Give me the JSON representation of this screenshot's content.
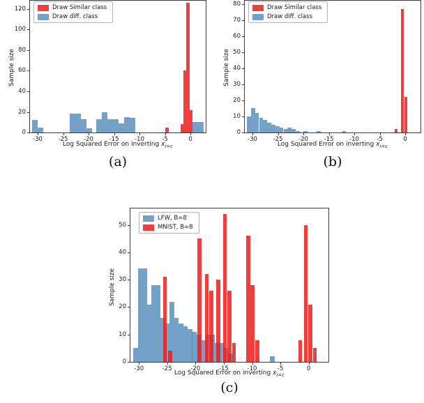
{
  "figure": {
    "sublabels": {
      "a": "(a)",
      "b": "(b)",
      "c": "(c)"
    }
  },
  "chart_data": [
    {
      "type": "bar",
      "variant": "histogram",
      "title": "",
      "ylabel": "Sample size",
      "xlabel_prefix": "Log Squared Error on inverting ",
      "xlabel_var": "x",
      "xlabel_sub": "i=c",
      "xlim": [
        -31.5,
        3
      ],
      "ylim": [
        0,
        128
      ],
      "xticks": [
        -30,
        -25,
        -20,
        -15,
        -10,
        -5,
        0
      ],
      "yticks": [
        0,
        20,
        40,
        60,
        80,
        100,
        120
      ],
      "grid": false,
      "legend_position": "upper-left",
      "legend": [
        {
          "label": "Draw Similar class",
          "color": "rgba(236,28,28,0.85)"
        },
        {
          "label": "Draw diff. class",
          "color": "rgba(70,130,180,0.75)"
        }
      ],
      "series": [
        {
          "key": "diff-class",
          "name": "Draw diff. class",
          "color": "rgba(70,130,180,0.75)",
          "binwidth": 1.1,
          "bins": [
            [
              -30.6,
              12
            ],
            [
              -29.5,
              5
            ],
            [
              -23.2,
              18
            ],
            [
              -22.1,
              18
            ],
            [
              -21,
              13
            ],
            [
              -19.9,
              4
            ],
            [
              -18,
              13
            ],
            [
              -16.9,
              20
            ],
            [
              -15.8,
              13
            ],
            [
              -14.7,
              13
            ],
            [
              -13.6,
              9
            ],
            [
              -12.5,
              15
            ],
            [
              -11.4,
              14
            ],
            [
              0.9,
              10
            ],
            [
              2,
              10
            ]
          ]
        },
        {
          "key": "similar-class",
          "name": "Draw Similar class",
          "color": "rgba(236,28,28,0.85)",
          "binwidth": 0.6,
          "bins": [
            [
              -4.6,
              5
            ],
            [
              -1.7,
              8
            ],
            [
              -1.1,
              60
            ],
            [
              -0.5,
              126
            ],
            [
              0.1,
              22
            ]
          ]
        }
      ]
    },
    {
      "type": "bar",
      "variant": "histogram",
      "title": "",
      "ylabel": "Sample size",
      "xlabel_prefix": "Log Squared Error on inverting ",
      "xlabel_var": "x",
      "xlabel_sub": "i=c",
      "xlim": [
        -31.5,
        3
      ],
      "ylim": [
        0,
        82
      ],
      "xticks": [
        -30,
        -25,
        -20,
        -15,
        -10,
        -5,
        0
      ],
      "yticks": [
        0,
        10,
        20,
        30,
        40,
        50,
        60,
        70,
        80
      ],
      "grid": false,
      "legend_position": "upper-left",
      "legend": [
        {
          "label": "Draw Similar class",
          "color": "rgba(236,28,28,0.85)"
        },
        {
          "label": "Draw diff. class",
          "color": "rgba(70,130,180,0.75)"
        }
      ],
      "series": [
        {
          "key": "diff-class",
          "name": "Draw diff. class",
          "color": "rgba(70,130,180,0.75)",
          "binwidth": 0.8,
          "bins": [
            [
              -30.7,
              10
            ],
            [
              -29.9,
              15
            ],
            [
              -29.1,
              12
            ],
            [
              -28.3,
              9
            ],
            [
              -27.5,
              8
            ],
            [
              -26.7,
              6
            ],
            [
              -25.9,
              5
            ],
            [
              -25.1,
              4
            ],
            [
              -24.3,
              3
            ],
            [
              -23.5,
              2
            ],
            [
              -22.7,
              3
            ],
            [
              -21.9,
              2
            ],
            [
              -21.1,
              1
            ],
            [
              -19.6,
              1
            ],
            [
              -17,
              1
            ],
            [
              -12,
              1
            ]
          ]
        },
        {
          "key": "similar-class",
          "name": "Draw Similar class",
          "color": "rgba(236,28,28,0.85)",
          "binwidth": 0.6,
          "bins": [
            [
              -1.8,
              2
            ],
            [
              -0.6,
              77
            ],
            [
              0.1,
              22
            ]
          ]
        }
      ]
    },
    {
      "type": "bar",
      "variant": "histogram",
      "title": "",
      "ylabel": "Sample size",
      "xlabel_prefix": "Log Squared Error on inverting ",
      "xlabel_var": "x",
      "xlabel_sub": "i=c",
      "xlim": [
        -31.5,
        3.5
      ],
      "ylim": [
        0,
        56
      ],
      "xticks": [
        -30,
        -25,
        -20,
        -15,
        -10,
        -5,
        0
      ],
      "yticks": [
        0,
        10,
        20,
        30,
        40,
        50
      ],
      "grid": false,
      "legend_position": "upper-left",
      "legend": [
        {
          "label": "LFW, B=8",
          "color": "rgba(70,130,180,0.75)"
        },
        {
          "label": "MNIST, B=8",
          "color": "rgba(236,28,28,0.85)"
        }
      ],
      "series": [
        {
          "key": "lfw",
          "name": "LFW, B=8",
          "color": "rgba(70,130,180,0.75)",
          "binwidth": 0.8,
          "bins": [
            [
              -30.6,
              5
            ],
            [
              -29.8,
              34
            ],
            [
              -29,
              34
            ],
            [
              -28.2,
              21
            ],
            [
              -27.4,
              28
            ],
            [
              -26.6,
              28
            ],
            [
              -25.8,
              16
            ],
            [
              -25,
              14
            ],
            [
              -24.2,
              22
            ],
            [
              -23.4,
              16
            ],
            [
              -22.6,
              14
            ],
            [
              -21.8,
              13
            ],
            [
              -21,
              12
            ],
            [
              -20.2,
              11
            ],
            [
              -19.4,
              10
            ],
            [
              -18.6,
              8
            ],
            [
              -17.8,
              10
            ],
            [
              -17,
              10
            ],
            [
              -16.2,
              7
            ],
            [
              -15.4,
              7
            ],
            [
              -14.6,
              5
            ],
            [
              -13.8,
              3
            ],
            [
              -6.4,
              2
            ]
          ]
        },
        {
          "key": "mnist",
          "name": "MNIST, B=8",
          "color": "rgba(236,28,28,0.85)",
          "binwidth": 0.7,
          "bins": [
            [
              -25.4,
              31
            ],
            [
              -24.5,
              4
            ],
            [
              -19.3,
              45
            ],
            [
              -18,
              32
            ],
            [
              -17.2,
              26
            ],
            [
              -16,
              30
            ],
            [
              -14.8,
              54
            ],
            [
              -14,
              26
            ],
            [
              -13.2,
              7
            ],
            [
              -10.7,
              46
            ],
            [
              -9.9,
              28
            ],
            [
              -9.1,
              8
            ],
            [
              -1.5,
              8
            ],
            [
              -0.5,
              50
            ],
            [
              0.3,
              21
            ],
            [
              1.1,
              5
            ]
          ]
        }
      ]
    }
  ]
}
